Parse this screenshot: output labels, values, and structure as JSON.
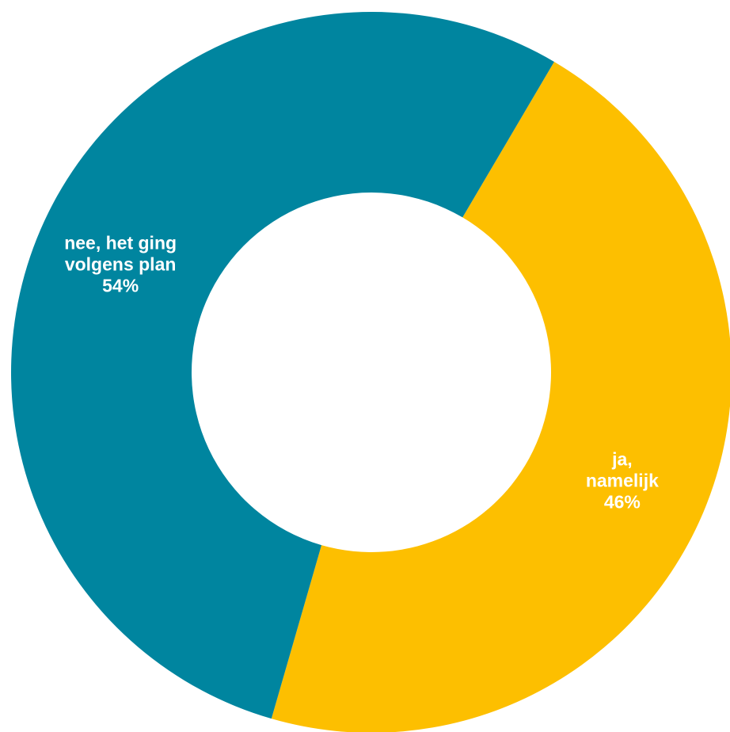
{
  "chart_data": {
    "type": "pie",
    "variant": "donut",
    "legend": "none",
    "slices": [
      {
        "label_lines": [
          "ja,",
          "namelijk"
        ],
        "value": 46,
        "value_label": "46%",
        "color": "#FDBF00"
      },
      {
        "label_lines": [
          "nee, het ging",
          "volgens plan"
        ],
        "value": 54,
        "value_label": "54%",
        "color": "#00859F"
      }
    ]
  }
}
